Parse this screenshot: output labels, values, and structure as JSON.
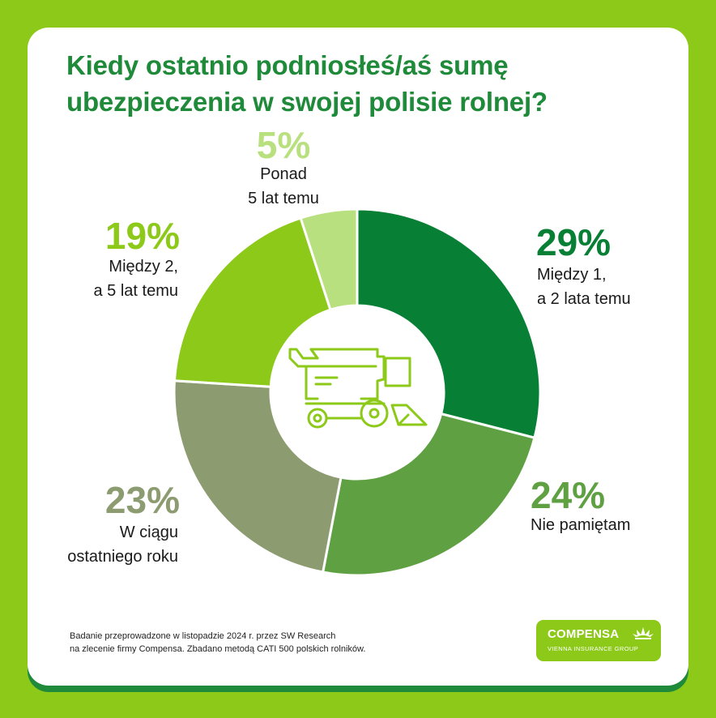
{
  "chart_data": {
    "type": "pie",
    "style": "donut",
    "title": "Kiedy ostatnio podniosłeś/aś sumę ubezpieczenia w swojej polisie rolnej?",
    "slices": [
      {
        "pct_label": "29%",
        "value": 29,
        "label_line1": "Między 1,",
        "label_line2": "a 2 lata temu",
        "color": "#078035"
      },
      {
        "pct_label": "24%",
        "value": 24,
        "label_line1": "Nie pamiętam",
        "label_line2": "",
        "color": "#5fa042"
      },
      {
        "pct_label": "23%",
        "value": 23,
        "label_line1": "W ciągu",
        "label_line2": "ostatniego roku",
        "color": "#8c9c70"
      },
      {
        "pct_label": "19%",
        "value": 19,
        "label_line1": "Między 2,",
        "label_line2": "a 5 lat temu",
        "color": "#8cc919"
      },
      {
        "pct_label": "5%",
        "value": 5,
        "label_line1": "Ponad",
        "label_line2": "5 lat temu",
        "color": "#b9e07e"
      }
    ],
    "center_icon": "combine-harvester-icon"
  },
  "footnote": {
    "line1": "Badanie przeprowadzone w listopadzie 2024 r. przez SW Research",
    "line2": "na zlecenie firmy Compensa. Zbadano metodą CATI 500 polskich rolników."
  },
  "logo": {
    "name": "COMPENSA",
    "subtitle": "VIENNA INSURANCE GROUP",
    "icon": "compensa-shell-icon"
  },
  "colors": {
    "background": "#8cc919",
    "card": "#ffffff",
    "title": "#1f8a3a",
    "icon": "#8cc919"
  }
}
